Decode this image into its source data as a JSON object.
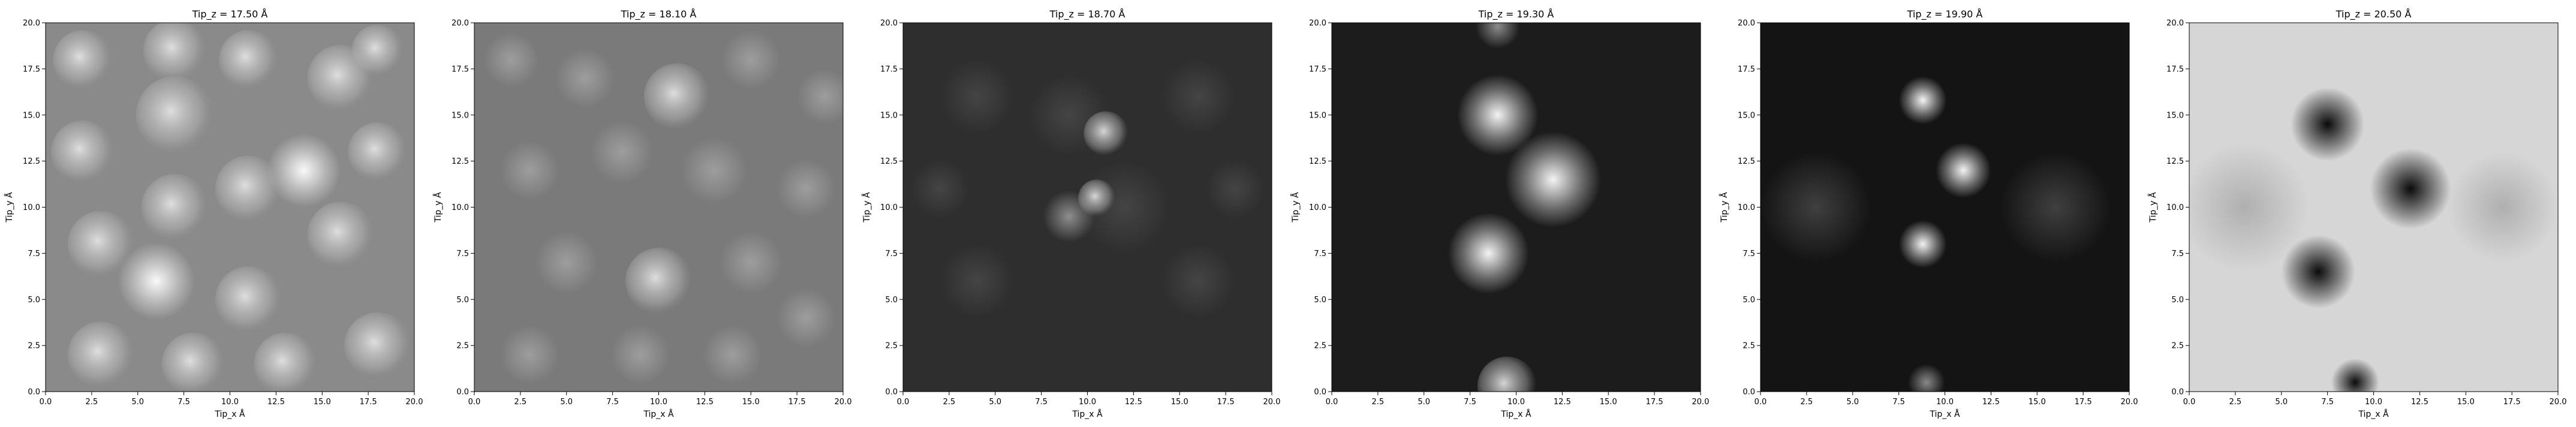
{
  "chart_data": [
    {
      "type": "heatmap",
      "title": "Tip_z = 17.50 Å",
      "xlabel": "Tip_x Å",
      "ylabel": "Tip_y Å",
      "xlim": [
        0,
        20
      ],
      "ylim": [
        0,
        20
      ],
      "xticks": [
        "0.0",
        "2.5",
        "5.0",
        "7.5",
        "10.0",
        "12.5",
        "15.0",
        "17.5",
        "20.0"
      ],
      "yticks": [
        "0.0",
        "2.5",
        "5.0",
        "7.5",
        "10.0",
        "12.5",
        "15.0",
        "17.5",
        "20.0"
      ],
      "colormap": "gray",
      "background": "#8a8a8a"
    },
    {
      "type": "heatmap",
      "title": "Tip_z = 18.10 Å",
      "xlabel": "Tip_x Å",
      "ylabel": "Tip_y Å",
      "xlim": [
        0,
        20
      ],
      "ylim": [
        0,
        20
      ],
      "xticks": [
        "0.0",
        "2.5",
        "5.0",
        "7.5",
        "10.0",
        "12.5",
        "15.0",
        "17.5",
        "20.0"
      ],
      "yticks": [
        "0.0",
        "2.5",
        "5.0",
        "7.5",
        "10.0",
        "12.5",
        "15.0",
        "17.5",
        "20.0"
      ],
      "colormap": "gray",
      "background": "#7a7a7a"
    },
    {
      "type": "heatmap",
      "title": "Tip_z = 18.70 Å",
      "xlabel": "Tip_x Å",
      "ylabel": "Tip_y Å",
      "xlim": [
        0,
        20
      ],
      "ylim": [
        0,
        20
      ],
      "xticks": [
        "0.0",
        "2.5",
        "5.0",
        "7.5",
        "10.0",
        "12.5",
        "15.0",
        "17.5",
        "20.0"
      ],
      "yticks": [
        "0.0",
        "2.5",
        "5.0",
        "7.5",
        "10.0",
        "12.5",
        "15.0",
        "17.5",
        "20.0"
      ],
      "colormap": "gray",
      "background": "#2e2e2e"
    },
    {
      "type": "heatmap",
      "title": "Tip_z = 19.30 Å",
      "xlabel": "Tip_x Å",
      "ylabel": "Tip_y Å",
      "xlim": [
        0,
        20
      ],
      "ylim": [
        0,
        20
      ],
      "xticks": [
        "0.0",
        "2.5",
        "5.0",
        "7.5",
        "10.0",
        "12.5",
        "15.0",
        "17.5",
        "20.0"
      ],
      "yticks": [
        "0.0",
        "2.5",
        "5.0",
        "7.5",
        "10.0",
        "12.5",
        "15.0",
        "17.5",
        "20.0"
      ],
      "colormap": "gray",
      "background": "#1c1c1c"
    },
    {
      "type": "heatmap",
      "title": "Tip_z = 19.90 Å",
      "xlabel": "Tip_x Å",
      "ylabel": "Tip_y Å",
      "xlim": [
        0,
        20
      ],
      "ylim": [
        0,
        20
      ],
      "xticks": [
        "0.0",
        "2.5",
        "5.0",
        "7.5",
        "10.0",
        "12.5",
        "15.0",
        "17.5",
        "20.0"
      ],
      "yticks": [
        "0.0",
        "2.5",
        "5.0",
        "7.5",
        "10.0",
        "12.5",
        "15.0",
        "17.5",
        "20.0"
      ],
      "colormap": "gray",
      "background": "#141414"
    },
    {
      "type": "heatmap",
      "title": "Tip_z = 20.50 Å",
      "xlabel": "Tip_x Å",
      "ylabel": "Tip_y Å",
      "xlim": [
        0,
        20
      ],
      "ylim": [
        0,
        20
      ],
      "xticks": [
        "0.0",
        "2.5",
        "5.0",
        "7.5",
        "10.0",
        "12.5",
        "15.0",
        "17.5",
        "20.0"
      ],
      "yticks": [
        "0.0",
        "2.5",
        "5.0",
        "7.5",
        "10.0",
        "12.5",
        "15.0",
        "17.5",
        "20.0"
      ],
      "colormap": "gray",
      "background": "#d6d6d6"
    }
  ]
}
